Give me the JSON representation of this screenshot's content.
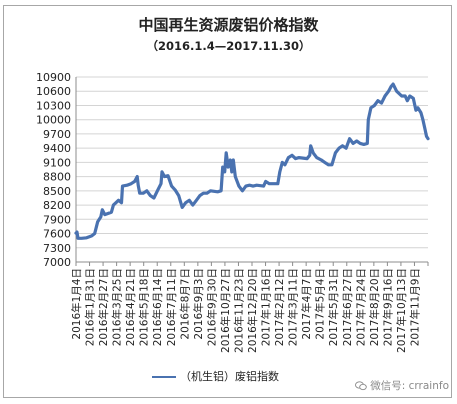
{
  "chart_data": {
    "type": "line",
    "title": "中国再生资源废铝价格指数",
    "subtitle": "（2016.1.4—2017.11.30）",
    "xlabel": "",
    "ylabel": "",
    "ylim": [
      7000,
      10900
    ],
    "yticks": [
      7000,
      7300,
      7600,
      7900,
      8200,
      8500,
      8800,
      9100,
      9400,
      9700,
      10000,
      10300,
      10600,
      10900
    ],
    "x_range": [
      "2016-01-04",
      "2017-11-30"
    ],
    "xticks": [
      "2016年1月4日",
      "2016年1月31日",
      "2016年2月27日",
      "2016年3月25日",
      "2016年4月21日",
      "2016年5月18日",
      "2016年6月14日",
      "2016年7月11日",
      "2016年8月7日",
      "2016年9月3日",
      "2016年9月30日",
      "2016年10月27日",
      "2016年11月23日",
      "2016年12月20日",
      "2017年1月16日",
      "2017年2月12日",
      "2017年3月11日",
      "2017年4月7日",
      "2017年5月4日",
      "2017年5月31日",
      "2017年6月27日",
      "2017年7月24日",
      "2017年8月20日",
      "2017年9月16日",
      "2017年10月13日",
      "2017年11月9日"
    ],
    "grid": true,
    "legend_position": "bottom",
    "series": [
      {
        "name": "（机生铝）废铝指数",
        "color": "#4a72b0",
        "points": [
          [
            "2016-01-04",
            7610
          ],
          [
            "2016-01-06",
            7630
          ],
          [
            "2016-01-08",
            7500
          ],
          [
            "2016-01-15",
            7500
          ],
          [
            "2016-01-25",
            7510
          ],
          [
            "2016-02-04",
            7550
          ],
          [
            "2016-02-10",
            7600
          ],
          [
            "2016-02-16",
            7850
          ],
          [
            "2016-02-22",
            7950
          ],
          [
            "2016-02-25",
            8100
          ],
          [
            "2016-03-01",
            8000
          ],
          [
            "2016-03-14",
            8050
          ],
          [
            "2016-03-18",
            8200
          ],
          [
            "2016-03-28",
            8300
          ],
          [
            "2016-04-03",
            8250
          ],
          [
            "2016-04-05",
            8600
          ],
          [
            "2016-04-14",
            8620
          ],
          [
            "2016-04-22",
            8650
          ],
          [
            "2016-04-29",
            8700
          ],
          [
            "2016-05-04",
            8800
          ],
          [
            "2016-05-06",
            8620
          ],
          [
            "2016-05-09",
            8450
          ],
          [
            "2016-05-16",
            8450
          ],
          [
            "2016-05-23",
            8500
          ],
          [
            "2016-05-30",
            8400
          ],
          [
            "2016-06-06",
            8350
          ],
          [
            "2016-06-13",
            8500
          ],
          [
            "2016-06-20",
            8650
          ],
          [
            "2016-06-22",
            8900
          ],
          [
            "2016-06-27",
            8800
          ],
          [
            "2016-07-04",
            8820
          ],
          [
            "2016-07-11",
            8600
          ],
          [
            "2016-07-18",
            8520
          ],
          [
            "2016-07-25",
            8400
          ],
          [
            "2016-08-01",
            8150
          ],
          [
            "2016-08-08",
            8250
          ],
          [
            "2016-08-15",
            8300
          ],
          [
            "2016-08-22",
            8200
          ],
          [
            "2016-08-29",
            8300
          ],
          [
            "2016-09-05",
            8400
          ],
          [
            "2016-09-12",
            8450
          ],
          [
            "2016-09-19",
            8450
          ],
          [
            "2016-09-26",
            8500
          ],
          [
            "2016-10-10",
            8480
          ],
          [
            "2016-10-17",
            8500
          ],
          [
            "2016-10-20",
            9000
          ],
          [
            "2016-10-24",
            8900
          ],
          [
            "2016-10-27",
            9300
          ],
          [
            "2016-10-31",
            9000
          ],
          [
            "2016-11-04",
            9150
          ],
          [
            "2016-11-07",
            8900
          ],
          [
            "2016-11-10",
            9150
          ],
          [
            "2016-11-14",
            8800
          ],
          [
            "2016-11-21",
            8600
          ],
          [
            "2016-11-28",
            8500
          ],
          [
            "2016-12-05",
            8600
          ],
          [
            "2016-12-12",
            8620
          ],
          [
            "2016-12-19",
            8600
          ],
          [
            "2016-12-26",
            8620
          ],
          [
            "2017-01-09",
            8600
          ],
          [
            "2017-01-13",
            8700
          ],
          [
            "2017-01-20",
            8650
          ],
          [
            "2017-02-06",
            8650
          ],
          [
            "2017-02-10",
            8900
          ],
          [
            "2017-02-15",
            9100
          ],
          [
            "2017-02-20",
            9050
          ],
          [
            "2017-02-27",
            9200
          ],
          [
            "2017-03-06",
            9250
          ],
          [
            "2017-03-13",
            9180
          ],
          [
            "2017-03-20",
            9200
          ],
          [
            "2017-04-05",
            9180
          ],
          [
            "2017-04-10",
            9250
          ],
          [
            "2017-04-12",
            9450
          ],
          [
            "2017-04-17",
            9300
          ],
          [
            "2017-04-24",
            9200
          ],
          [
            "2017-05-03",
            9150
          ],
          [
            "2017-05-10",
            9100
          ],
          [
            "2017-05-17",
            9050
          ],
          [
            "2017-05-24",
            9050
          ],
          [
            "2017-05-31",
            9300
          ],
          [
            "2017-06-07",
            9400
          ],
          [
            "2017-06-14",
            9450
          ],
          [
            "2017-06-21",
            9400
          ],
          [
            "2017-06-28",
            9600
          ],
          [
            "2017-07-05",
            9500
          ],
          [
            "2017-07-12",
            9550
          ],
          [
            "2017-07-19",
            9500
          ],
          [
            "2017-07-26",
            9480
          ],
          [
            "2017-08-02",
            9500
          ],
          [
            "2017-08-04",
            10000
          ],
          [
            "2017-08-09",
            10250
          ],
          [
            "2017-08-16",
            10300
          ],
          [
            "2017-08-23",
            10400
          ],
          [
            "2017-08-30",
            10350
          ],
          [
            "2017-09-06",
            10500
          ],
          [
            "2017-09-13",
            10600
          ],
          [
            "2017-09-18",
            10700
          ],
          [
            "2017-09-22",
            10750
          ],
          [
            "2017-09-29",
            10600
          ],
          [
            "2017-10-09",
            10500
          ],
          [
            "2017-10-16",
            10500
          ],
          [
            "2017-10-20",
            10400
          ],
          [
            "2017-10-25",
            10500
          ],
          [
            "2017-11-01",
            10450
          ],
          [
            "2017-11-06",
            10200
          ],
          [
            "2017-11-10",
            10250
          ],
          [
            "2017-11-16",
            10150
          ],
          [
            "2017-11-20",
            10000
          ],
          [
            "2017-11-24",
            9800
          ],
          [
            "2017-11-27",
            9650
          ],
          [
            "2017-11-30",
            9600
          ]
        ]
      }
    ]
  },
  "watermark": {
    "icon": "wechat-icon",
    "text": "微信号: crrainfo"
  }
}
